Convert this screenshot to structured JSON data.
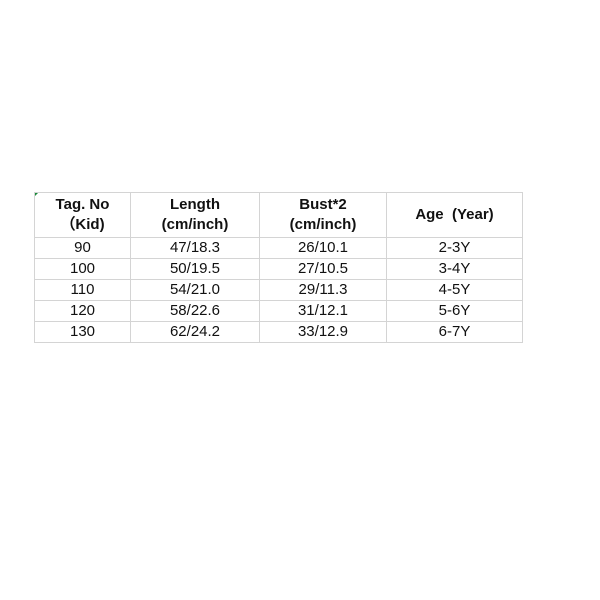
{
  "headers": [
    {
      "line1": "Tag. No",
      "line2": "（Kid)"
    },
    {
      "line1": "Length",
      "line2": "(cm/inch)"
    },
    {
      "line1": "Bust*2",
      "line2": "(cm/inch)"
    },
    {
      "line1": "Age  (Year)",
      "line2": ""
    }
  ],
  "rows": [
    [
      "90",
      "47/18.3",
      "26/10.1",
      "2-3Y"
    ],
    [
      "100",
      "50/19.5",
      "27/10.5",
      "3-4Y"
    ],
    [
      "110",
      "54/21.0",
      "29/11.3",
      "4-5Y"
    ],
    [
      "120",
      "58/22.6",
      "31/12.1",
      "5-6Y"
    ],
    [
      "130",
      "62/24.2",
      "33/12.9",
      "6-7Y"
    ]
  ]
}
